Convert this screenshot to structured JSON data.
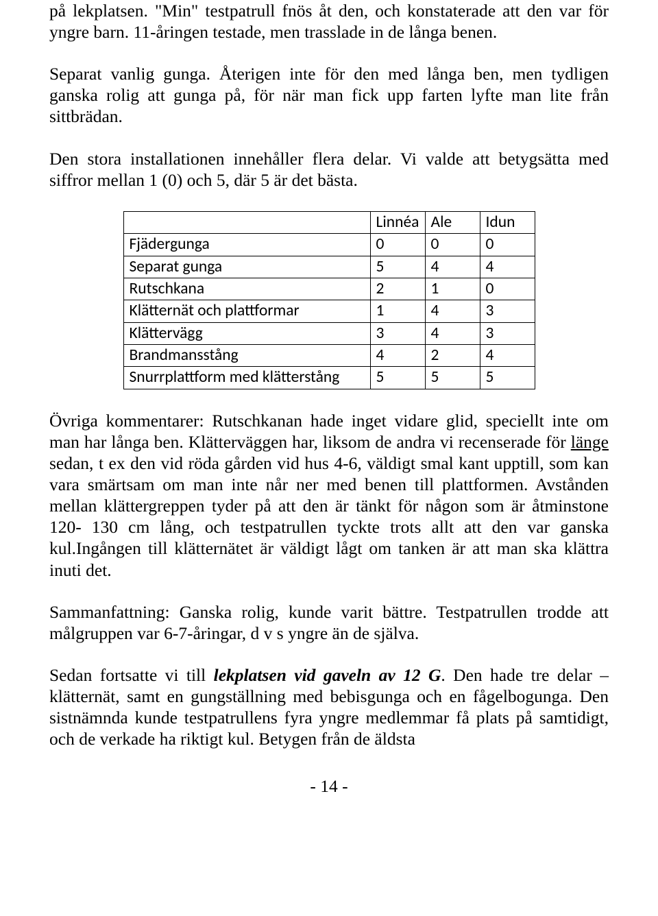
{
  "paragraphs": {
    "p1": "på lekplatsen. \"Min\" testpatrull fnös åt den, och konstaterade att den var för yngre barn. 11-åringen testade, men trasslade in de långa benen.",
    "p2": "Separat vanlig gunga. Återigen inte för den med långa ben, men tydligen ganska rolig att gunga på, för när man fick upp farten lyfte man lite från sittbrädan.",
    "p3": "Den stora installationen innehåller flera delar. Vi valde att betygsätta med siffror mellan 1 (0) och 5, där 5 är det bästa.",
    "p4_a": "Övriga kommentarer: Rutschkanan hade inget vidare glid, speciellt inte om man har långa ben. Klätterväggen har, liksom de andra vi recenserade för ",
    "p4_link": "länge",
    "p4_b": " sedan, t ex den vid röda gården vid hus 4-6, väldigt smal kant upptill, som kan vara smärtsam om man inte når ner med benen till plattformen. Avstånden mellan klättergreppen tyder på att den är tänkt för någon som är åtminstone 120- 130 cm lång, och testpatrullen tyckte trots allt att den var ganska kul.Ingången till klätternätet är väldigt lågt om tanken är att man ska klättra inuti det.",
    "p5": "Sammanfattning: Ganska rolig, kunde varit bättre. Testpatrullen trodde att målgruppen var 6-7-åringar, d v s yngre än de själva.",
    "p6_a": "Sedan fortsatte vi till ",
    "p6_title": "lekplatsen vid gaveln av 12 G",
    "p6_b": ". Den hade tre delar – klätternät, samt en gungställning med bebisgunga och en fågelbogunga. Den sistnämnda kunde testpatrullens fyra yngre medlemmar få plats på samtidigt, och de verkade ha riktigt kul. Betygen från de äldsta"
  },
  "table": {
    "corner": "",
    "headers": [
      "Linnéa",
      "Ale",
      "Idun"
    ],
    "rows": [
      {
        "label": "Fjädergunga",
        "cells": [
          "0",
          "0",
          "0"
        ]
      },
      {
        "label": "Separat gunga",
        "cells": [
          "5",
          "4",
          "4"
        ]
      },
      {
        "label": "Rutschkana",
        "cells": [
          "2",
          "1",
          "0"
        ]
      },
      {
        "label": "Klätternät och plattformar",
        "cells": [
          "1",
          "4",
          "3"
        ]
      },
      {
        "label": "Klättervägg",
        "cells": [
          "3",
          "4",
          "3"
        ]
      },
      {
        "label": "Brandmansstång",
        "cells": [
          "4",
          "2",
          "4"
        ]
      },
      {
        "label": "Snurrplattform med klätterstång",
        "cells": [
          "5",
          "5",
          "5"
        ]
      }
    ]
  },
  "page_number": "- 14 -"
}
